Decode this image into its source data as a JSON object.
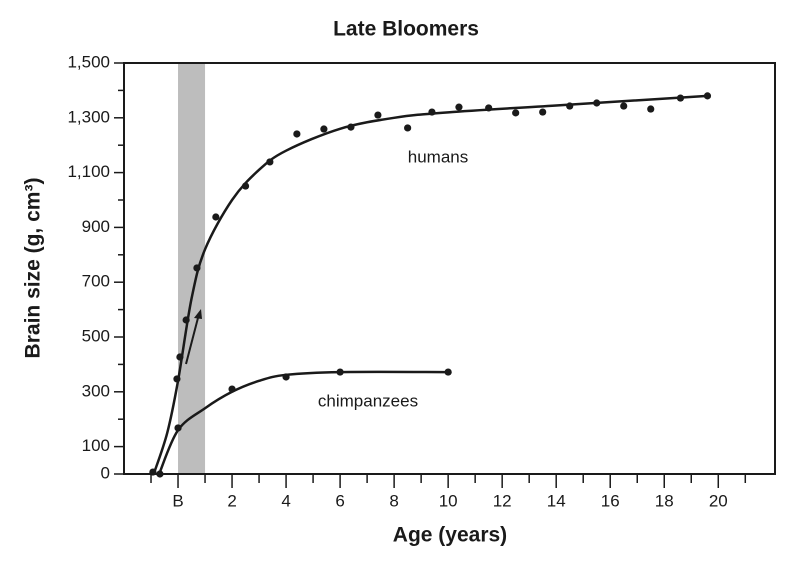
{
  "chart_data": {
    "type": "scatter",
    "title": "Late Bloomers",
    "x_label": "Age (years)",
    "y_label": "Brain size (g, cm³)",
    "xlim": [
      -2,
      22.1
    ],
    "ylim": [
      0,
      1500
    ],
    "xticks": [
      {
        "value": 0,
        "label": "B"
      },
      2,
      4,
      6,
      8,
      10,
      12,
      14,
      16,
      18,
      20
    ],
    "xminor_ticks": [
      -1,
      1,
      3,
      5,
      7,
      9,
      11,
      13,
      15,
      17,
      19,
      21
    ],
    "yticks": [
      0,
      100,
      300,
      500,
      700,
      900,
      {
        "value": 1100,
        "label": "1,100"
      },
      {
        "value": 1300,
        "label": "1,300"
      },
      {
        "value": 1500,
        "label": "1,500"
      }
    ],
    "yminor_ticks": [
      200,
      400,
      600,
      800,
      1000,
      1200,
      1400
    ],
    "shaded_x": [
      0,
      1
    ],
    "shade_color": "#bdbdbd",
    "color": "#1a1a1a",
    "series": [
      {
        "name": "humans",
        "x": [
          -0.93,
          -0.04,
          0.07,
          0.3,
          0.7,
          1.4,
          2.5,
          3.4,
          4.4,
          5.4,
          6.4,
          7.4,
          8.5,
          9.4,
          10.4,
          11.5,
          12.5,
          13.5,
          14.5,
          15.5,
          16.5,
          17.5,
          18.6,
          19.6
        ],
        "values": [
          7,
          347,
          427,
          562,
          752,
          938,
          1051,
          1139,
          1241,
          1259,
          1266,
          1310,
          1263,
          1321,
          1339,
          1336,
          1318,
          1321,
          1343,
          1354,
          1343,
          1332,
          1372,
          1380
        ],
        "fit_x": [
          -0.9,
          -0.4,
          0,
          0.5,
          1,
          2,
          3,
          4,
          6,
          8,
          10,
          14,
          19.6
        ],
        "fit_values": [
          0,
          150,
          340,
          640,
          820,
          1000,
          1110,
          1180,
          1260,
          1300,
          1320,
          1345,
          1380
        ]
      },
      {
        "name": "chimpanzees",
        "x": [
          -0.67,
          0,
          2,
          4,
          6,
          10
        ],
        "values": [
          0,
          168,
          310,
          354,
          372,
          372
        ],
        "fit_x": [
          -0.7,
          0,
          1,
          2,
          3,
          4,
          6,
          10
        ],
        "fit_values": [
          0,
          160,
          240,
          300,
          340,
          362,
          372,
          372
        ]
      }
    ]
  }
}
